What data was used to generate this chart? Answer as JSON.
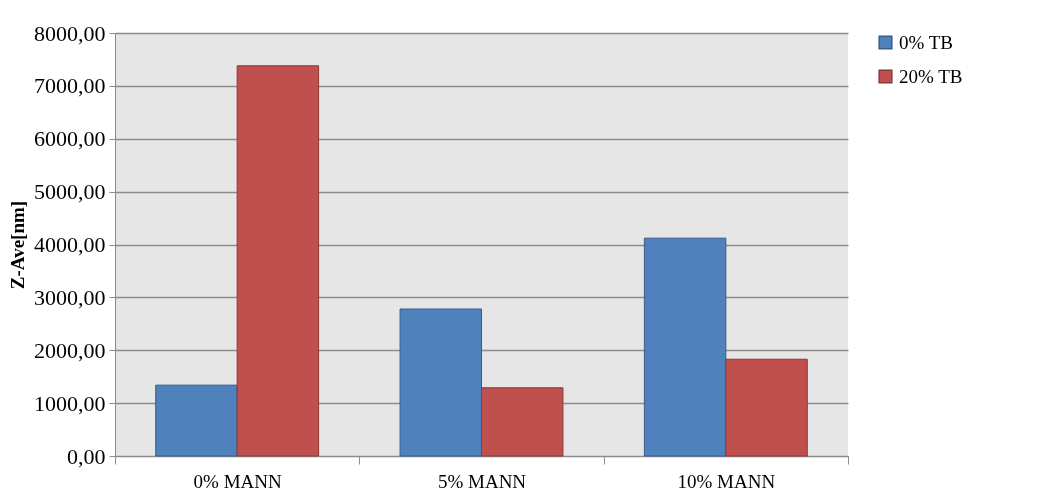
{
  "chart_data": {
    "type": "bar",
    "ylabel": "Z-Ave[nm]",
    "categories": [
      "0% MANN",
      "5% MANN",
      "10% MANN"
    ],
    "series": [
      {
        "name": "0% TB",
        "color": "#4f81bd",
        "values": [
          1340,
          2780,
          4120
        ]
      },
      {
        "name": "20% TB",
        "color": "#c0504d",
        "values": [
          7380,
          1290,
          1830
        ]
      }
    ],
    "ylim": [
      0,
      8000
    ],
    "yticks": [
      {
        "value": 0,
        "label": "0,00"
      },
      {
        "value": 1000,
        "label": "1000,00"
      },
      {
        "value": 2000,
        "label": "2000,00"
      },
      {
        "value": 3000,
        "label": "3000,00"
      },
      {
        "value": 4000,
        "label": "4000,00"
      },
      {
        "value": 5000,
        "label": "5000,00"
      },
      {
        "value": 6000,
        "label": "6000,00"
      },
      {
        "value": 7000,
        "label": "7000,00"
      },
      {
        "value": 8000,
        "label": "8000,00"
      }
    ],
    "grid": "y",
    "legend": "right"
  }
}
